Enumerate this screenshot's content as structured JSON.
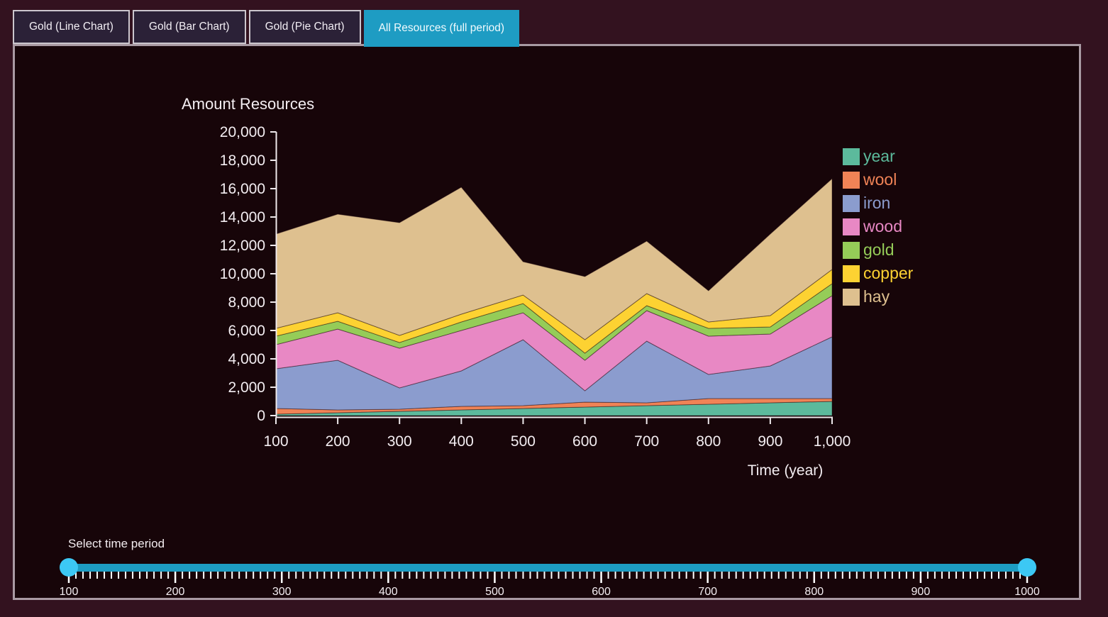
{
  "tabs": [
    {
      "label": "Gold (Line Chart)",
      "active": false
    },
    {
      "label": "Gold (Bar Chart)",
      "active": false
    },
    {
      "label": "Gold (Pie Chart)",
      "active": false
    },
    {
      "label": "All Resources (full period)",
      "active": true
    }
  ],
  "colors": {
    "page_background": "#33121f",
    "panel_background": "#170509",
    "panel_border": "#a99aa3",
    "tab_inactive_bg": "#2b2137",
    "tab_active_bg": "#1e9cc3",
    "axis": "#efe9ec",
    "text": "#f3edf1",
    "slider_track": "#1d9cc2",
    "slider_handle": "#3cc8f4"
  },
  "chart_data": {
    "type": "area",
    "stacked": true,
    "title": "Amount Resources",
    "xlabel": "Time (year)",
    "ylabel": "Amount Resources",
    "grid": false,
    "legend_position": "right",
    "xlim": [
      100,
      1000
    ],
    "ylim": [
      0,
      20000
    ],
    "x": [
      100,
      200,
      300,
      400,
      500,
      600,
      700,
      800,
      900,
      1000
    ],
    "x_tick_labels": [
      "100",
      "200",
      "300",
      "400",
      "500",
      "600",
      "700",
      "800",
      "900",
      "1,000"
    ],
    "y_ticks": [
      0,
      2000,
      4000,
      6000,
      8000,
      10000,
      12000,
      14000,
      16000,
      18000,
      20000
    ],
    "y_tick_labels": [
      "0",
      "2,000",
      "4,000",
      "6,000",
      "8,000",
      "10,000",
      "12,000",
      "14,000",
      "16,000",
      "18,000",
      "20,000"
    ],
    "series": [
      {
        "name": "year",
        "color": "#5cba9c",
        "values": [
          100,
          200,
          300,
          400,
          500,
          600,
          700,
          800,
          900,
          1000
        ]
      },
      {
        "name": "wool",
        "color": "#f08356",
        "values": [
          400,
          200,
          150,
          250,
          200,
          350,
          200,
          400,
          300,
          200
        ]
      },
      {
        "name": "iron",
        "color": "#8b9cce",
        "values": [
          2800,
          3500,
          1500,
          2500,
          4650,
          800,
          4350,
          1700,
          2300,
          4350
        ]
      },
      {
        "name": "wood",
        "color": "#e888c4",
        "values": [
          1700,
          2200,
          2800,
          2850,
          1900,
          2150,
          2150,
          2700,
          2250,
          2900
        ]
      },
      {
        "name": "gold",
        "color": "#95cc58",
        "values": [
          600,
          550,
          400,
          600,
          650,
          500,
          350,
          550,
          500,
          850
        ]
      },
      {
        "name": "copper",
        "color": "#fdd232",
        "values": [
          550,
          600,
          500,
          550,
          600,
          950,
          850,
          450,
          800,
          1000
        ]
      },
      {
        "name": "hay",
        "color": "#dec08f",
        "values": [
          6650,
          6950,
          7950,
          8950,
          2350,
          4450,
          3700,
          2200,
          5750,
          6400
        ]
      }
    ]
  },
  "slider": {
    "label": "Select time period",
    "min": 100,
    "max": 1000,
    "current_min": 100,
    "current_max": 1000,
    "major_tick_labels": [
      "100",
      "200",
      "300",
      "400",
      "500",
      "600",
      "700",
      "800",
      "900",
      "1000"
    ],
    "minor_ticks_per_interval": 14
  }
}
